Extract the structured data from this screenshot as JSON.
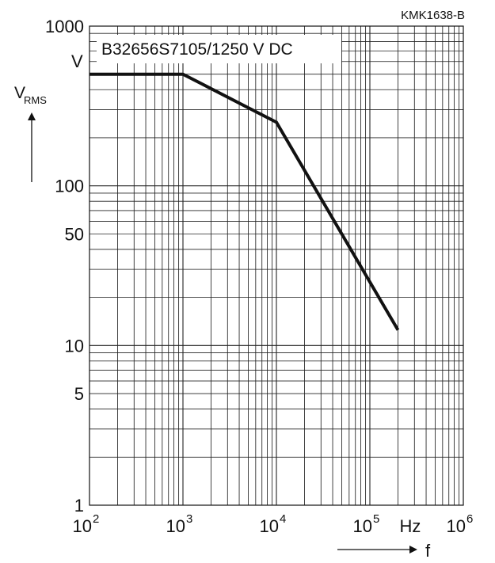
{
  "chart_data": {
    "type": "line",
    "code": "KMK1638-B",
    "series_label": "B32656S7105/1250 V DC",
    "x_scale": "log",
    "y_scale": "log",
    "xlim": [
      100,
      1000000
    ],
    "ylim": [
      1,
      1000
    ],
    "x_unit": "Hz",
    "x_symbol": "f",
    "y_symbol_main": "V",
    "y_symbol_sub": "RMS",
    "y_unit": "V",
    "grid": true,
    "x_ticks": [
      {
        "value": 100,
        "base": "10",
        "exp": "2"
      },
      {
        "value": 1000,
        "base": "10",
        "exp": "3"
      },
      {
        "value": 10000,
        "base": "10",
        "exp": "4"
      },
      {
        "value": 100000,
        "base": "10",
        "exp": "5"
      },
      {
        "value": 1000000,
        "base": "10",
        "exp": "6"
      }
    ],
    "y_ticks": [
      {
        "value": 1000,
        "label": "1000"
      },
      {
        "value": 100,
        "label": "100"
      },
      {
        "value": 50,
        "label": "50"
      },
      {
        "value": 10,
        "label": "10"
      },
      {
        "value": 5,
        "label": "5"
      },
      {
        "value": 1,
        "label": "1"
      }
    ],
    "series": [
      {
        "x": [
          100,
          1000,
          10000,
          200000
        ],
        "y": [
          500,
          500,
          250,
          12.5
        ]
      }
    ]
  }
}
